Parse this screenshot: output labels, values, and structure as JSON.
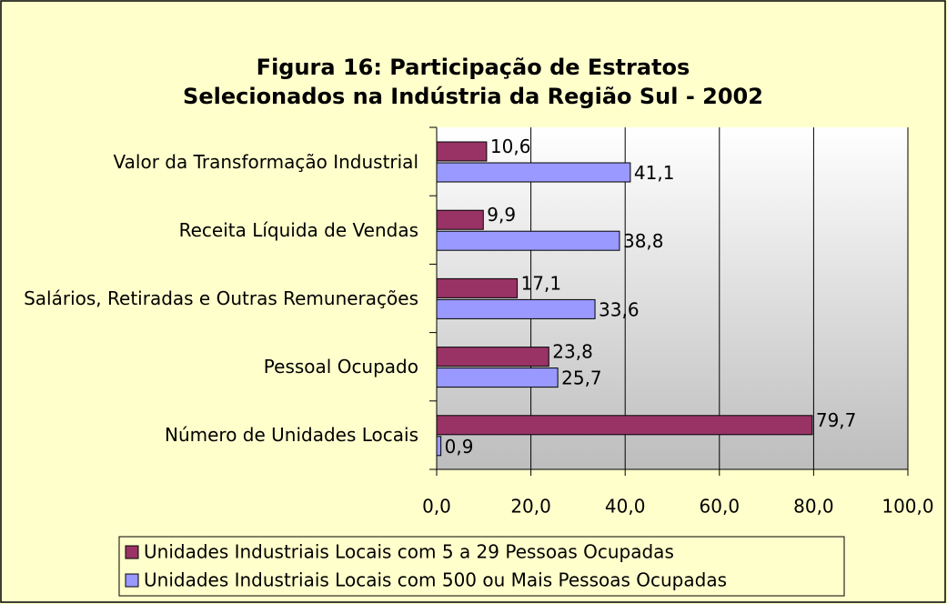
{
  "chart_data": {
    "type": "bar",
    "orientation": "horizontal",
    "title": "Figura 16: Participação de Estratos Selecionados na Indústria da Região Sul - 2002",
    "categories": [
      "Valor da Transformação Industrial",
      "Receita Líquida de Vendas",
      "Salários, Retiradas e Outras Remunerações",
      "Pessoal Ocupado",
      "Número de Unidades Locais"
    ],
    "series": [
      {
        "name": "Unidades Industriais Locais com 5 a 29 Pessoas Ocupadas",
        "color": "#993366",
        "values": [
          10.6,
          9.9,
          17.1,
          23.8,
          79.7
        ],
        "value_labels": [
          "10,6",
          "9,9",
          "17,1",
          "23,8",
          "79,7"
        ]
      },
      {
        "name": "Unidades Industriais Locais com 500 ou Mais Pessoas Ocupadas",
        "color": "#9999ff",
        "values": [
          41.1,
          38.8,
          33.6,
          25.7,
          0.9
        ],
        "value_labels": [
          "41,1",
          "38,8",
          "33,6",
          "25,7",
          "0,9"
        ]
      }
    ],
    "xlim": [
      0,
      100
    ],
    "xticks": [
      {
        "value": 0,
        "label": "0,0"
      },
      {
        "value": 20,
        "label": "20,0"
      },
      {
        "value": 40,
        "label": "40,0"
      },
      {
        "value": 60,
        "label": "60,0"
      },
      {
        "value": 80,
        "label": "80,0"
      },
      {
        "value": 100,
        "label": "100,0"
      }
    ],
    "grid": true,
    "legend": "bottom"
  }
}
